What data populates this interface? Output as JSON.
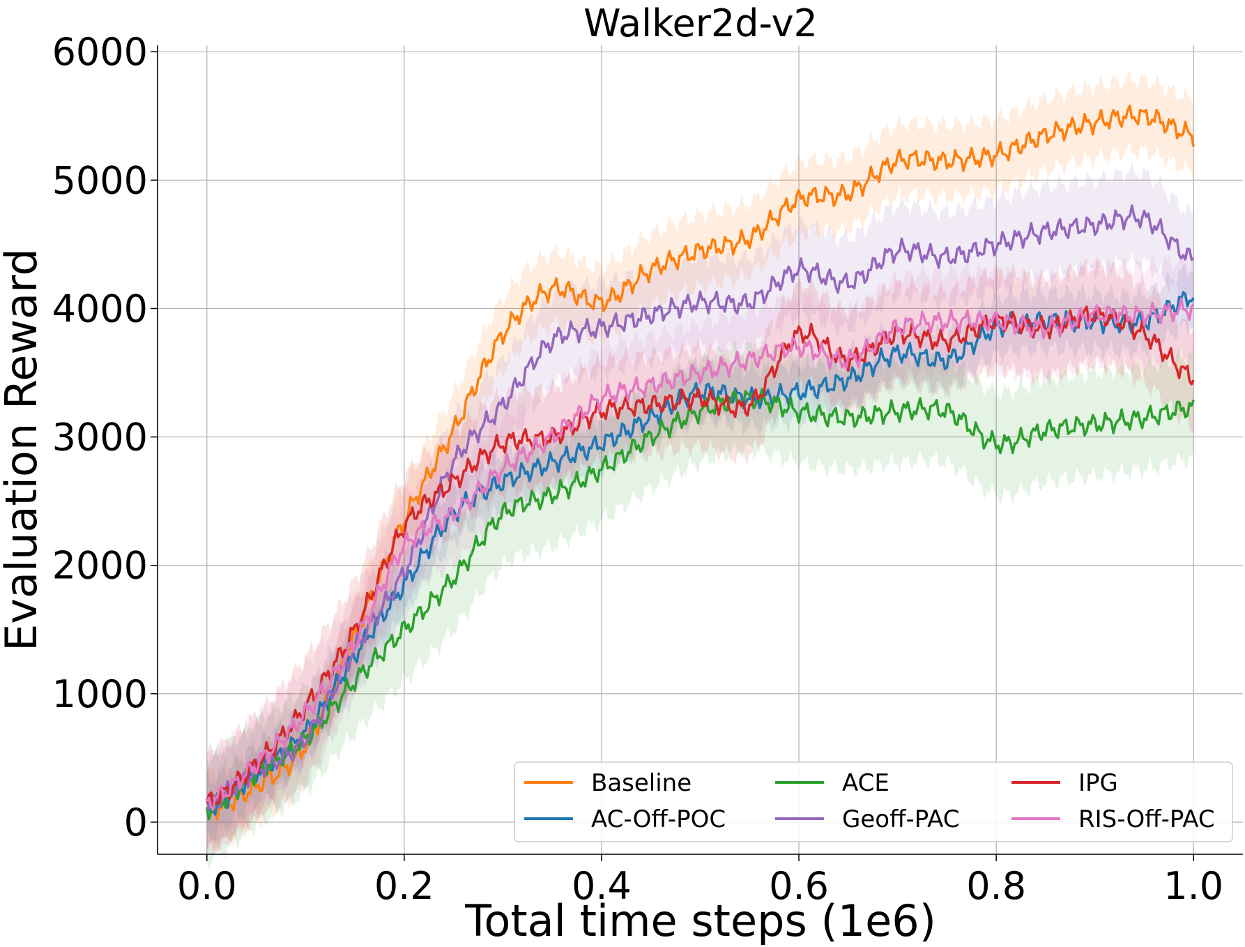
{
  "chart_data": {
    "type": "line",
    "title": "Walker2d-v2",
    "xlabel": "Total time steps (1e6)",
    "ylabel": "Evaluation Reward",
    "xlim": [
      -0.05,
      1.05
    ],
    "ylim": [
      -250,
      6050
    ],
    "xticks": [
      0.0,
      0.2,
      0.4,
      0.6,
      0.8,
      1.0
    ],
    "xtick_labels": [
      "0.0",
      "0.2",
      "0.4",
      "0.6",
      "0.8",
      "1.0"
    ],
    "yticks": [
      0,
      1000,
      2000,
      3000,
      4000,
      5000,
      6000
    ],
    "ytick_labels": [
      "0",
      "1000",
      "2000",
      "3000",
      "4000",
      "5000",
      "6000"
    ],
    "grid": true,
    "legend_position": "lower-right",
    "x": [
      0.0,
      0.05,
      0.1,
      0.15,
      0.2,
      0.25,
      0.3,
      0.35,
      0.4,
      0.45,
      0.5,
      0.55,
      0.6,
      0.65,
      0.7,
      0.75,
      0.8,
      0.85,
      0.9,
      0.95,
      1.0
    ],
    "series": [
      {
        "name": "Baseline",
        "color": "#ff7f0e",
        "band": 280,
        "values": [
          80,
          280,
          600,
          1450,
          2350,
          3050,
          3800,
          4150,
          4050,
          4300,
          4450,
          4550,
          4850,
          4900,
          5150,
          5150,
          5200,
          5350,
          5450,
          5500,
          5350
        ]
      },
      {
        "name": "AC-Off-POC",
        "color": "#1f77b4",
        "band": 220,
        "values": [
          100,
          380,
          700,
          1300,
          1850,
          2400,
          2650,
          2800,
          2950,
          3150,
          3350,
          3300,
          3350,
          3450,
          3650,
          3600,
          3850,
          3900,
          3900,
          3900,
          4100
        ]
      },
      {
        "name": "ACE",
        "color": "#2ca02c",
        "band": 400,
        "values": [
          100,
          380,
          650,
          1100,
          1500,
          1900,
          2400,
          2550,
          2750,
          3000,
          3200,
          3300,
          3200,
          3150,
          3200,
          3200,
          2950,
          3050,
          3100,
          3150,
          3230
        ]
      },
      {
        "name": "Geoff-PAC",
        "color": "#9467bd",
        "band": 350,
        "values": [
          150,
          400,
          650,
          1350,
          1950,
          2800,
          3250,
          3750,
          3850,
          3950,
          4050,
          4050,
          4300,
          4200,
          4450,
          4400,
          4500,
          4600,
          4650,
          4700,
          4380
        ]
      },
      {
        "name": "IPG",
        "color": "#d62728",
        "band": 380,
        "values": [
          150,
          450,
          900,
          1500,
          2300,
          2650,
          2950,
          3000,
          3200,
          3250,
          3300,
          3250,
          3800,
          3600,
          3800,
          3750,
          3900,
          3850,
          3950,
          3800,
          3460
        ]
      },
      {
        "name": "RIS-Off-PAC",
        "color": "#e377c2",
        "band": 380,
        "values": [
          150,
          450,
          850,
          1400,
          2150,
          2400,
          2750,
          3000,
          3300,
          3400,
          3500,
          3600,
          3700,
          3600,
          3850,
          3900,
          3900,
          3850,
          3950,
          3950,
          4000
        ]
      }
    ]
  }
}
